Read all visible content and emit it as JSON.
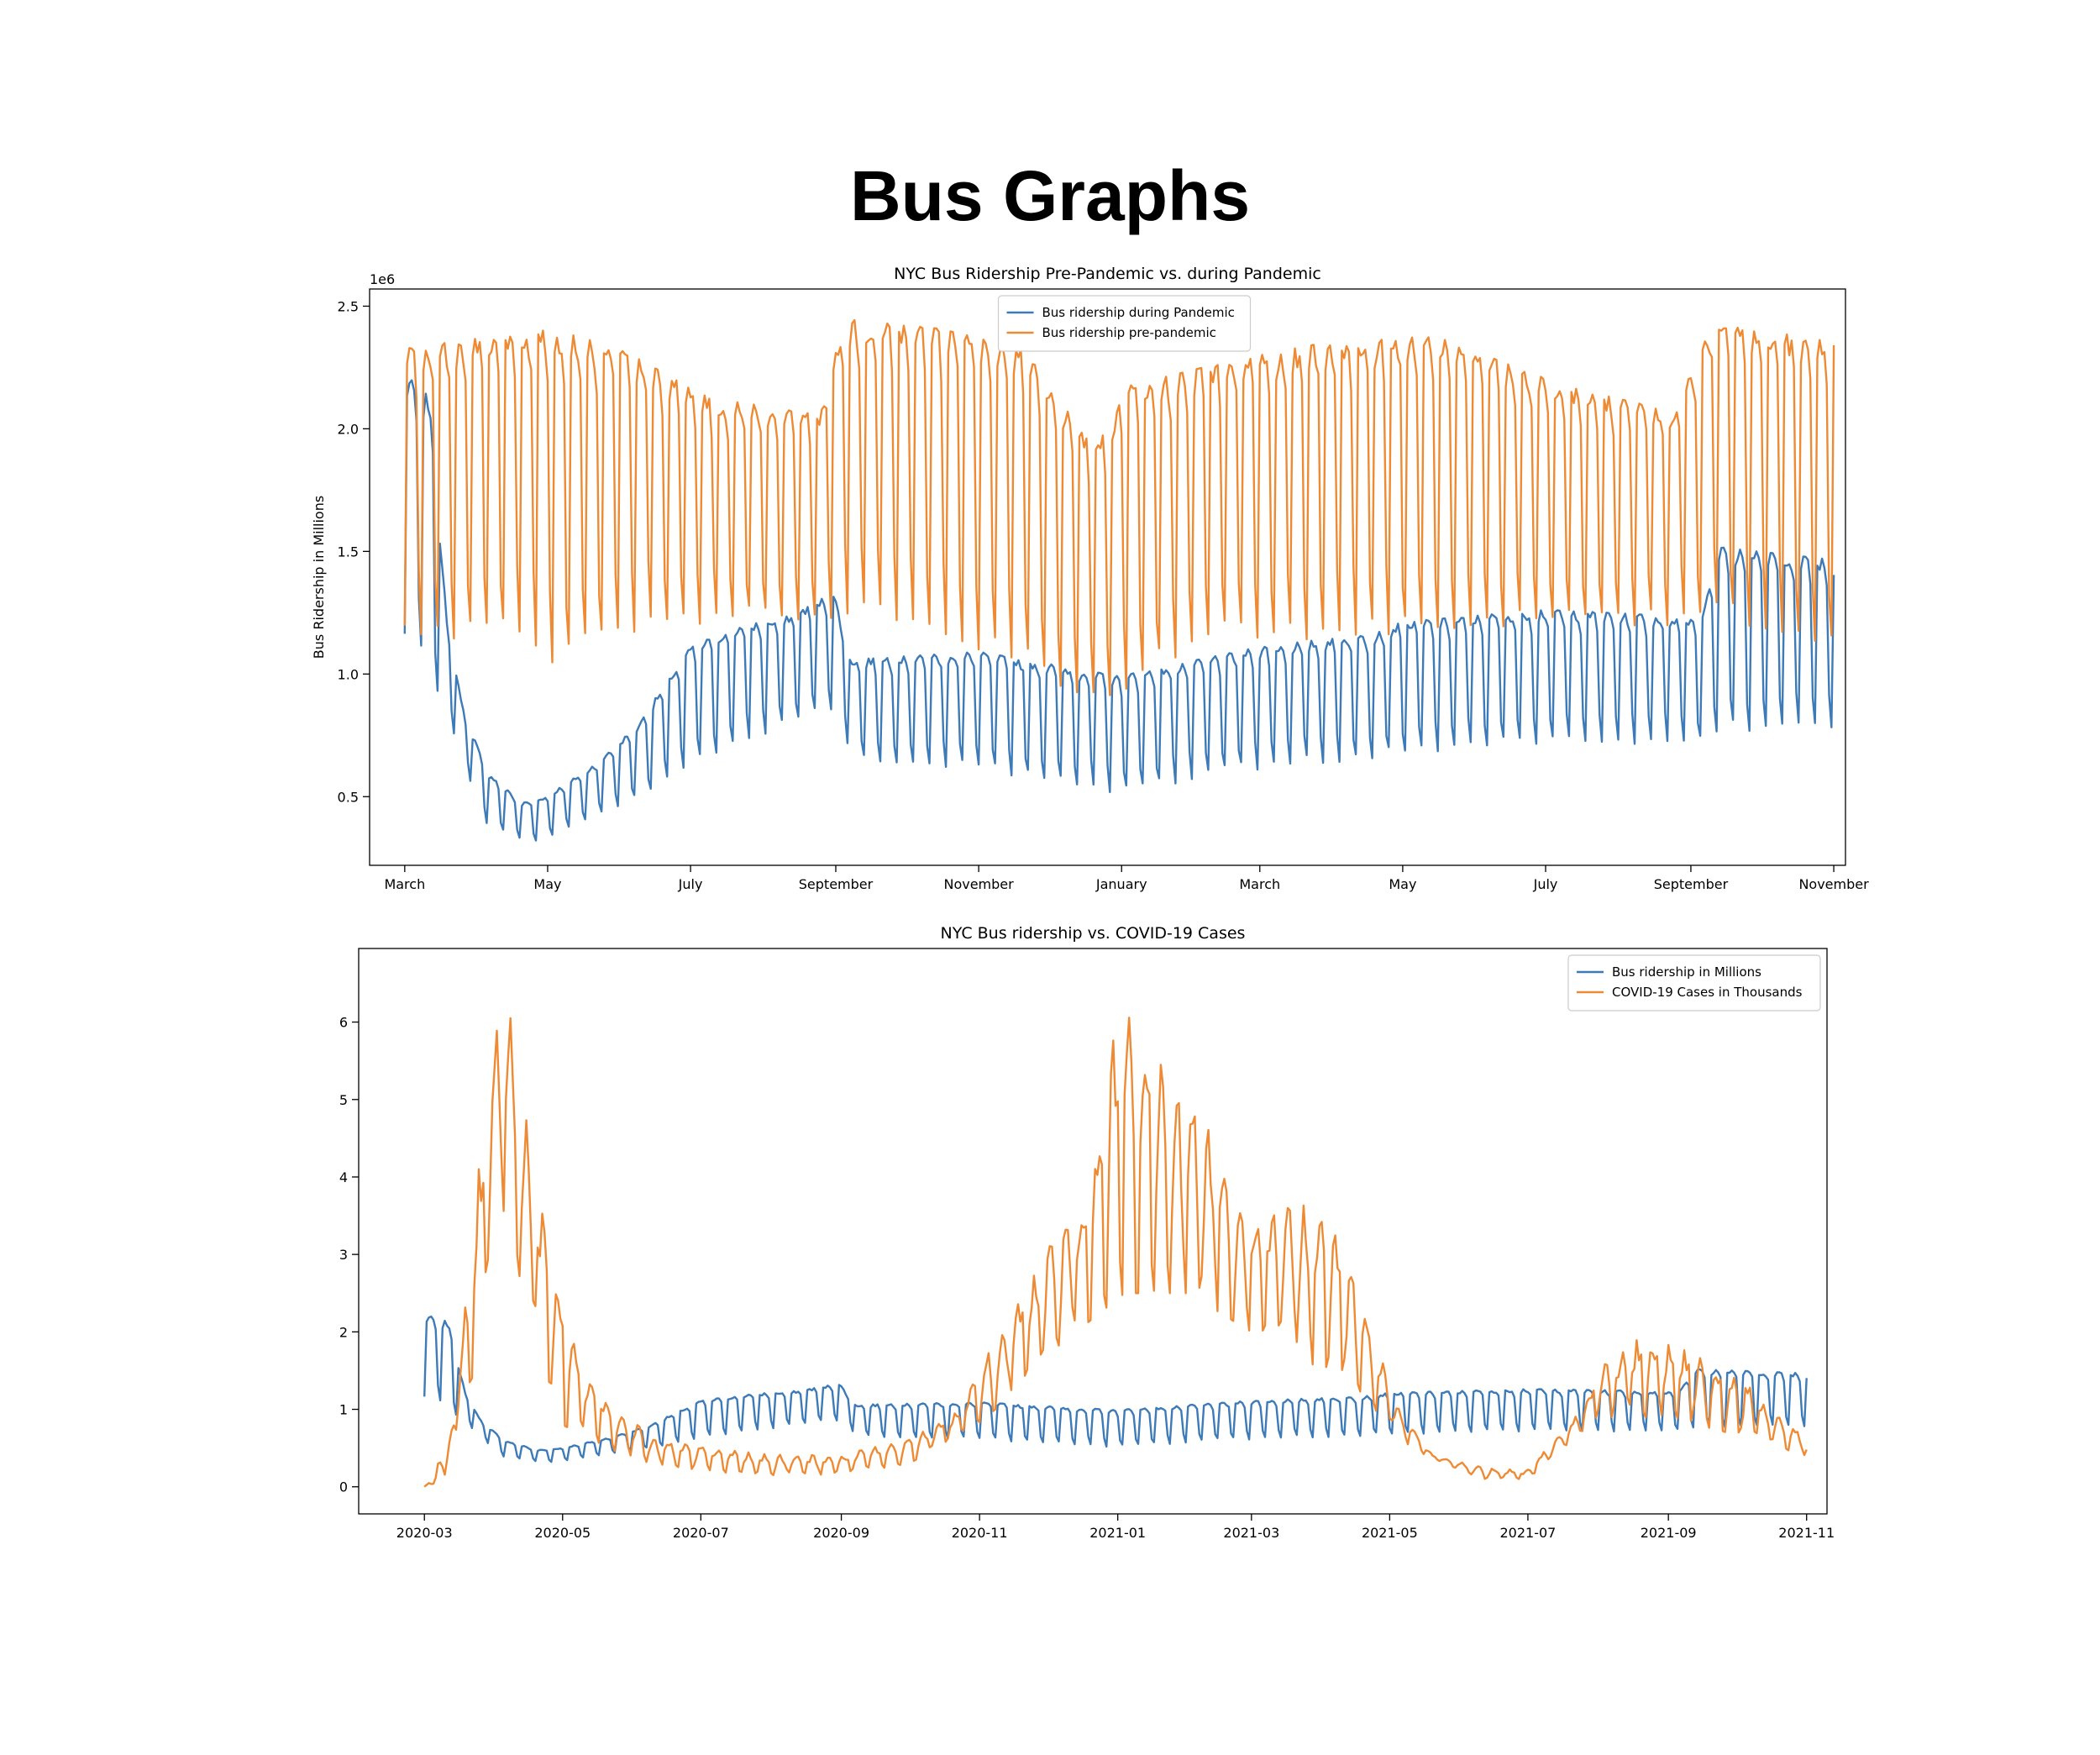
{
  "page": {
    "title": "Bus Graphs"
  },
  "colors": {
    "blue": "#3d7ab8",
    "orange": "#ee8a33",
    "axis": "#000000",
    "background": "#ffffff"
  },
  "chart_data": [
    {
      "type": "line",
      "title": "NYC Bus Ridership Pre-Pandemic vs. during Pandemic",
      "xlabel": "",
      "ylabel": "Bus Ridership in Millions",
      "y_offset_label": "1e6",
      "xlim": [
        "2020-02-15",
        "2021-11-06"
      ],
      "ylim": [
        0.22,
        2.57
      ],
      "y_unit_multiplier": 1000000,
      "x_ticks": [
        {
          "date": "2020-03-01",
          "label": "March"
        },
        {
          "date": "2020-05-01",
          "label": "May"
        },
        {
          "date": "2020-07-01",
          "label": "July"
        },
        {
          "date": "2020-09-01",
          "label": "September"
        },
        {
          "date": "2020-11-01",
          "label": "November"
        },
        {
          "date": "2021-01-01",
          "label": "January"
        },
        {
          "date": "2021-03-01",
          "label": "March"
        },
        {
          "date": "2021-05-01",
          "label": "May"
        },
        {
          "date": "2021-07-01",
          "label": "July"
        },
        {
          "date": "2021-09-01",
          "label": "September"
        },
        {
          "date": "2021-11-01",
          "label": "November"
        }
      ],
      "y_ticks": [
        "0.5",
        "1.0",
        "1.5",
        "2.0",
        "2.5"
      ],
      "legend_position": "top-center",
      "grid": false,
      "date_range": [
        "2020-03-01",
        "2021-11-01"
      ],
      "series": [
        {
          "name": "Bus ridership during Pandemic",
          "color": "#3d7ab8",
          "weekly_weekday_level": [
            {
              "date": "2020-03-01",
              "value": 2.2
            },
            {
              "date": "2020-03-12",
              "value": 2.1
            },
            {
              "date": "2020-03-19",
              "value": 1.2
            },
            {
              "date": "2020-03-26",
              "value": 0.85
            },
            {
              "date": "2020-04-05",
              "value": 0.6
            },
            {
              "date": "2020-04-20",
              "value": 0.47
            },
            {
              "date": "2020-05-01",
              "value": 0.5
            },
            {
              "date": "2020-05-20",
              "value": 0.62
            },
            {
              "date": "2020-06-08",
              "value": 0.78
            },
            {
              "date": "2020-06-20",
              "value": 0.95
            },
            {
              "date": "2020-07-01",
              "value": 1.1
            },
            {
              "date": "2020-07-20",
              "value": 1.18
            },
            {
              "date": "2020-08-10",
              "value": 1.22
            },
            {
              "date": "2020-08-31",
              "value": 1.32
            },
            {
              "date": "2020-09-08",
              "value": 1.05
            },
            {
              "date": "2020-11-01",
              "value": 1.08
            },
            {
              "date": "2020-12-31",
              "value": 0.98
            },
            {
              "date": "2021-01-20",
              "value": 1.02
            },
            {
              "date": "2021-03-01",
              "value": 1.1
            },
            {
              "date": "2021-04-15",
              "value": 1.15
            },
            {
              "date": "2021-05-01",
              "value": 1.2
            },
            {
              "date": "2021-07-01",
              "value": 1.25
            },
            {
              "date": "2021-09-05",
              "value": 1.22
            },
            {
              "date": "2021-09-13",
              "value": 1.5
            },
            {
              "date": "2021-11-01",
              "value": 1.45
            }
          ],
          "weekly_weekend_level": [
            {
              "date": "2020-03-01",
              "value": 0.97
            },
            {
              "date": "2020-03-22",
              "value": 0.72
            },
            {
              "date": "2020-04-05",
              "value": 0.35
            },
            {
              "date": "2020-04-25",
              "value": 0.29
            },
            {
              "date": "2020-05-20",
              "value": 0.38
            },
            {
              "date": "2020-06-20",
              "value": 0.5
            },
            {
              "date": "2020-07-20",
              "value": 0.65
            },
            {
              "date": "2020-08-31",
              "value": 0.8
            },
            {
              "date": "2020-09-08",
              "value": 0.6
            },
            {
              "date": "2020-11-01",
              "value": 0.55
            },
            {
              "date": "2020-12-31",
              "value": 0.45
            },
            {
              "date": "2021-03-01",
              "value": 0.55
            },
            {
              "date": "2021-05-01",
              "value": 0.6
            },
            {
              "date": "2021-07-01",
              "value": 0.65
            },
            {
              "date": "2021-09-01",
              "value": 0.65
            },
            {
              "date": "2021-11-01",
              "value": 0.68
            }
          ]
        },
        {
          "name": "Bus ridership pre-pandemic",
          "color": "#ee8a33",
          "weekly_weekday_level": [
            {
              "date": "2020-03-01",
              "value": 2.3
            },
            {
              "date": "2020-05-01",
              "value": 2.38
            },
            {
              "date": "2020-06-01",
              "value": 2.3
            },
            {
              "date": "2020-07-10",
              "value": 2.1
            },
            {
              "date": "2020-08-25",
              "value": 2.05
            },
            {
              "date": "2020-09-05",
              "value": 2.42
            },
            {
              "date": "2020-10-15",
              "value": 2.38
            },
            {
              "date": "2020-11-20",
              "value": 2.3
            },
            {
              "date": "2020-12-20",
              "value": 1.9
            },
            {
              "date": "2021-01-05",
              "value": 2.15
            },
            {
              "date": "2021-02-15",
              "value": 2.25
            },
            {
              "date": "2021-04-01",
              "value": 2.33
            },
            {
              "date": "2021-05-15",
              "value": 2.35
            },
            {
              "date": "2021-07-10",
              "value": 2.15
            },
            {
              "date": "2021-08-25",
              "value": 2.05
            },
            {
              "date": "2021-09-10",
              "value": 2.4
            },
            {
              "date": "2021-11-01",
              "value": 2.33
            }
          ],
          "weekly_weekend_level": [
            {
              "date": "2020-03-01",
              "value": 0.97
            },
            {
              "date": "2020-04-20",
              "value": 0.98
            },
            {
              "date": "2020-05-05",
              "value": 0.84
            },
            {
              "date": "2020-06-15",
              "value": 1.08
            },
            {
              "date": "2020-08-01",
              "value": 1.1
            },
            {
              "date": "2020-09-01",
              "value": 1.1
            },
            {
              "date": "2020-11-15",
              "value": 0.9
            },
            {
              "date": "2020-12-25",
              "value": 0.72
            },
            {
              "date": "2021-02-01",
              "value": 0.98
            },
            {
              "date": "2021-05-01",
              "value": 1.0
            },
            {
              "date": "2021-07-01",
              "value": 1.05
            },
            {
              "date": "2021-09-01",
              "value": 1.1
            },
            {
              "date": "2021-11-01",
              "value": 0.9
            }
          ]
        }
      ]
    },
    {
      "type": "line",
      "title": "NYC Bus ridership vs. COVID-19 Cases",
      "xlabel": "",
      "ylabel": "",
      "xlim": [
        "2020-02-01",
        "2021-11-10"
      ],
      "ylim": [
        -0.35,
        6.95
      ],
      "x_ticks": [
        {
          "date": "2020-03-01",
          "label": "2020-03"
        },
        {
          "date": "2020-05-01",
          "label": "2020-05"
        },
        {
          "date": "2020-07-01",
          "label": "2020-07"
        },
        {
          "date": "2020-09-01",
          "label": "2020-09"
        },
        {
          "date": "2020-11-01",
          "label": "2020-11"
        },
        {
          "date": "2021-01-01",
          "label": "2021-01"
        },
        {
          "date": "2021-03-01",
          "label": "2021-03"
        },
        {
          "date": "2021-05-01",
          "label": "2021-05"
        },
        {
          "date": "2021-07-01",
          "label": "2021-07"
        },
        {
          "date": "2021-09-01",
          "label": "2021-09"
        },
        {
          "date": "2021-11-01",
          "label": "2021-11"
        }
      ],
      "y_ticks": [
        "0",
        "1",
        "2",
        "3",
        "4",
        "5",
        "6"
      ],
      "legend_position": "top-right",
      "grid": false,
      "date_range": [
        "2020-03-01",
        "2021-11-01"
      ],
      "series": [
        {
          "name": "Bus ridership in Millions",
          "color": "#3d7ab8",
          "same_as_series_of_chart_1": true
        },
        {
          "name": "COVID-19 Cases in Thousands",
          "color": "#ee8a33",
          "weekly_peak_level": [
            {
              "date": "2020-03-01",
              "value": 0.0
            },
            {
              "date": "2020-03-10",
              "value": 0.1
            },
            {
              "date": "2020-03-16",
              "value": 1.5
            },
            {
              "date": "2020-03-25",
              "value": 4.0
            },
            {
              "date": "2020-04-03",
              "value": 6.2
            },
            {
              "date": "2020-04-10",
              "value": 5.8
            },
            {
              "date": "2020-04-18",
              "value": 4.0
            },
            {
              "date": "2020-04-28",
              "value": 2.6
            },
            {
              "date": "2020-05-10",
              "value": 1.4
            },
            {
              "date": "2020-05-25",
              "value": 1.0
            },
            {
              "date": "2020-06-10",
              "value": 0.6
            },
            {
              "date": "2020-07-01",
              "value": 0.5
            },
            {
              "date": "2020-08-01",
              "value": 0.4
            },
            {
              "date": "2020-09-01",
              "value": 0.4
            },
            {
              "date": "2020-10-01",
              "value": 0.6
            },
            {
              "date": "2020-10-20",
              "value": 0.9
            },
            {
              "date": "2020-11-05",
              "value": 1.7
            },
            {
              "date": "2020-11-20",
              "value": 2.4
            },
            {
              "date": "2020-12-05",
              "value": 3.2
            },
            {
              "date": "2020-12-20",
              "value": 3.8
            },
            {
              "date": "2021-01-04",
              "value": 6.5
            },
            {
              "date": "2021-01-15",
              "value": 5.5
            },
            {
              "date": "2021-01-28",
              "value": 5.0
            },
            {
              "date": "2021-02-10",
              "value": 4.5
            },
            {
              "date": "2021-02-25",
              "value": 3.5
            },
            {
              "date": "2021-03-15",
              "value": 3.5
            },
            {
              "date": "2021-04-01",
              "value": 3.6
            },
            {
              "date": "2021-04-20",
              "value": 2.2
            },
            {
              "date": "2021-05-05",
              "value": 1.0
            },
            {
              "date": "2021-05-20",
              "value": 0.4
            },
            {
              "date": "2021-06-10",
              "value": 0.25
            },
            {
              "date": "2021-06-30",
              "value": 0.2
            },
            {
              "date": "2021-07-20",
              "value": 0.8
            },
            {
              "date": "2021-08-05",
              "value": 1.6
            },
            {
              "date": "2021-08-20",
              "value": 1.9
            },
            {
              "date": "2021-09-10",
              "value": 1.7
            },
            {
              "date": "2021-10-05",
              "value": 1.3
            },
            {
              "date": "2021-11-01",
              "value": 0.6
            }
          ],
          "weekly_low_level": [
            {
              "date": "2020-03-01",
              "value": 0.0
            },
            {
              "date": "2020-03-20",
              "value": 1.0
            },
            {
              "date": "2020-04-03",
              "value": 3.8
            },
            {
              "date": "2020-04-18",
              "value": 2.0
            },
            {
              "date": "2020-05-01",
              "value": 0.8
            },
            {
              "date": "2020-06-01",
              "value": 0.35
            },
            {
              "date": "2020-07-01",
              "value": 0.2
            },
            {
              "date": "2020-08-01",
              "value": 0.15
            },
            {
              "date": "2020-09-01",
              "value": 0.15
            },
            {
              "date": "2020-10-01",
              "value": 0.3
            },
            {
              "date": "2020-11-05",
              "value": 0.9
            },
            {
              "date": "2020-12-05",
              "value": 1.8
            },
            {
              "date": "2021-01-04",
              "value": 2.5
            },
            {
              "date": "2021-02-01",
              "value": 2.5
            },
            {
              "date": "2021-03-01",
              "value": 2.0
            },
            {
              "date": "2021-04-15",
              "value": 1.3
            },
            {
              "date": "2021-05-10",
              "value": 0.5
            },
            {
              "date": "2021-06-10",
              "value": 0.1
            },
            {
              "date": "2021-07-01",
              "value": 0.1
            },
            {
              "date": "2021-08-01",
              "value": 0.9
            },
            {
              "date": "2021-09-01",
              "value": 0.9
            },
            {
              "date": "2021-10-10",
              "value": 0.6
            },
            {
              "date": "2021-11-01",
              "value": 0.4
            }
          ]
        }
      ]
    }
  ]
}
